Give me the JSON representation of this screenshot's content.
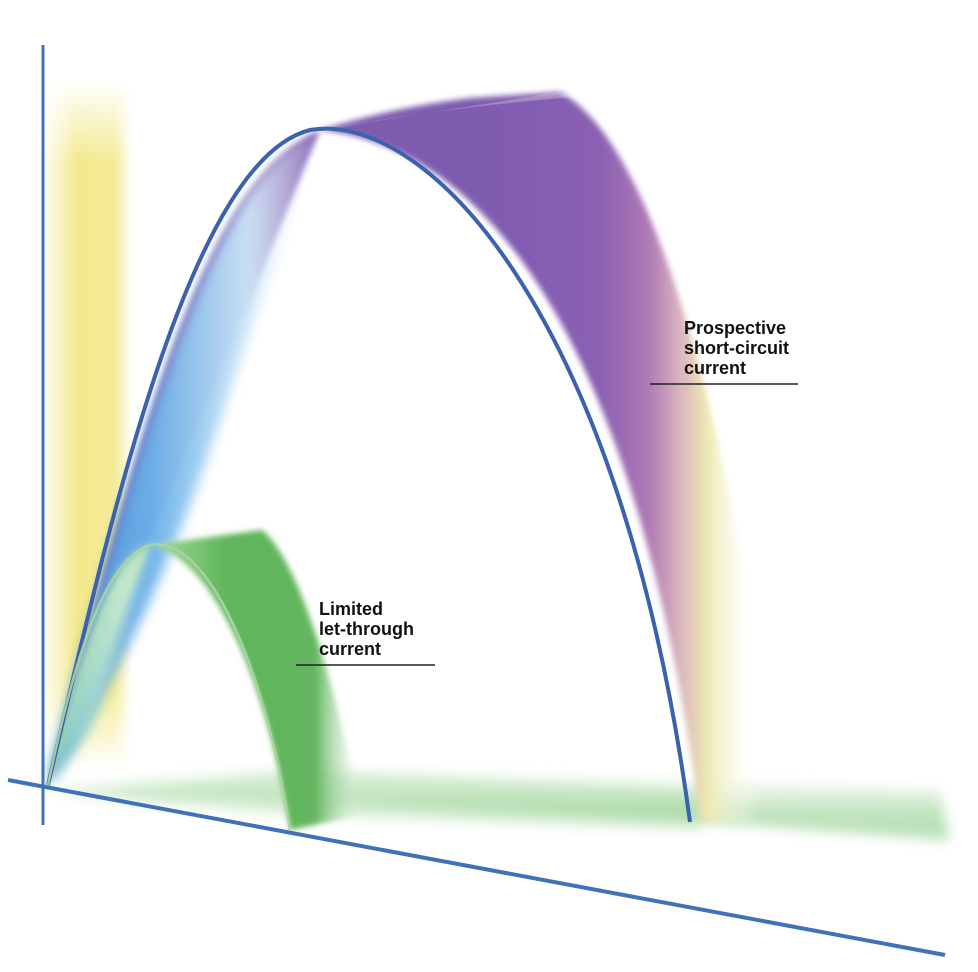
{
  "labels": {
    "prospective": {
      "lines": [
        "Prospective",
        "short-circuit",
        "current"
      ]
    },
    "limited": {
      "lines": [
        "Limited",
        "let-through",
        "current"
      ]
    }
  },
  "colors": {
    "axis": "#3f72b8",
    "prospective_curve": "#3a62ad",
    "prospective_band_purple": "#8a5fb0",
    "prospective_band_pink": "#c9a3c3",
    "prospective_band_yellow": "#efedb6",
    "prospective_inner_blue": "#4f9fe0",
    "limited_band_green": "#5db35a",
    "limited_inner_green": "#a9d69f",
    "floor_green": "#8fcf8a",
    "yellow_panel": "#f3e98c",
    "leader_line": "#222222"
  }
}
